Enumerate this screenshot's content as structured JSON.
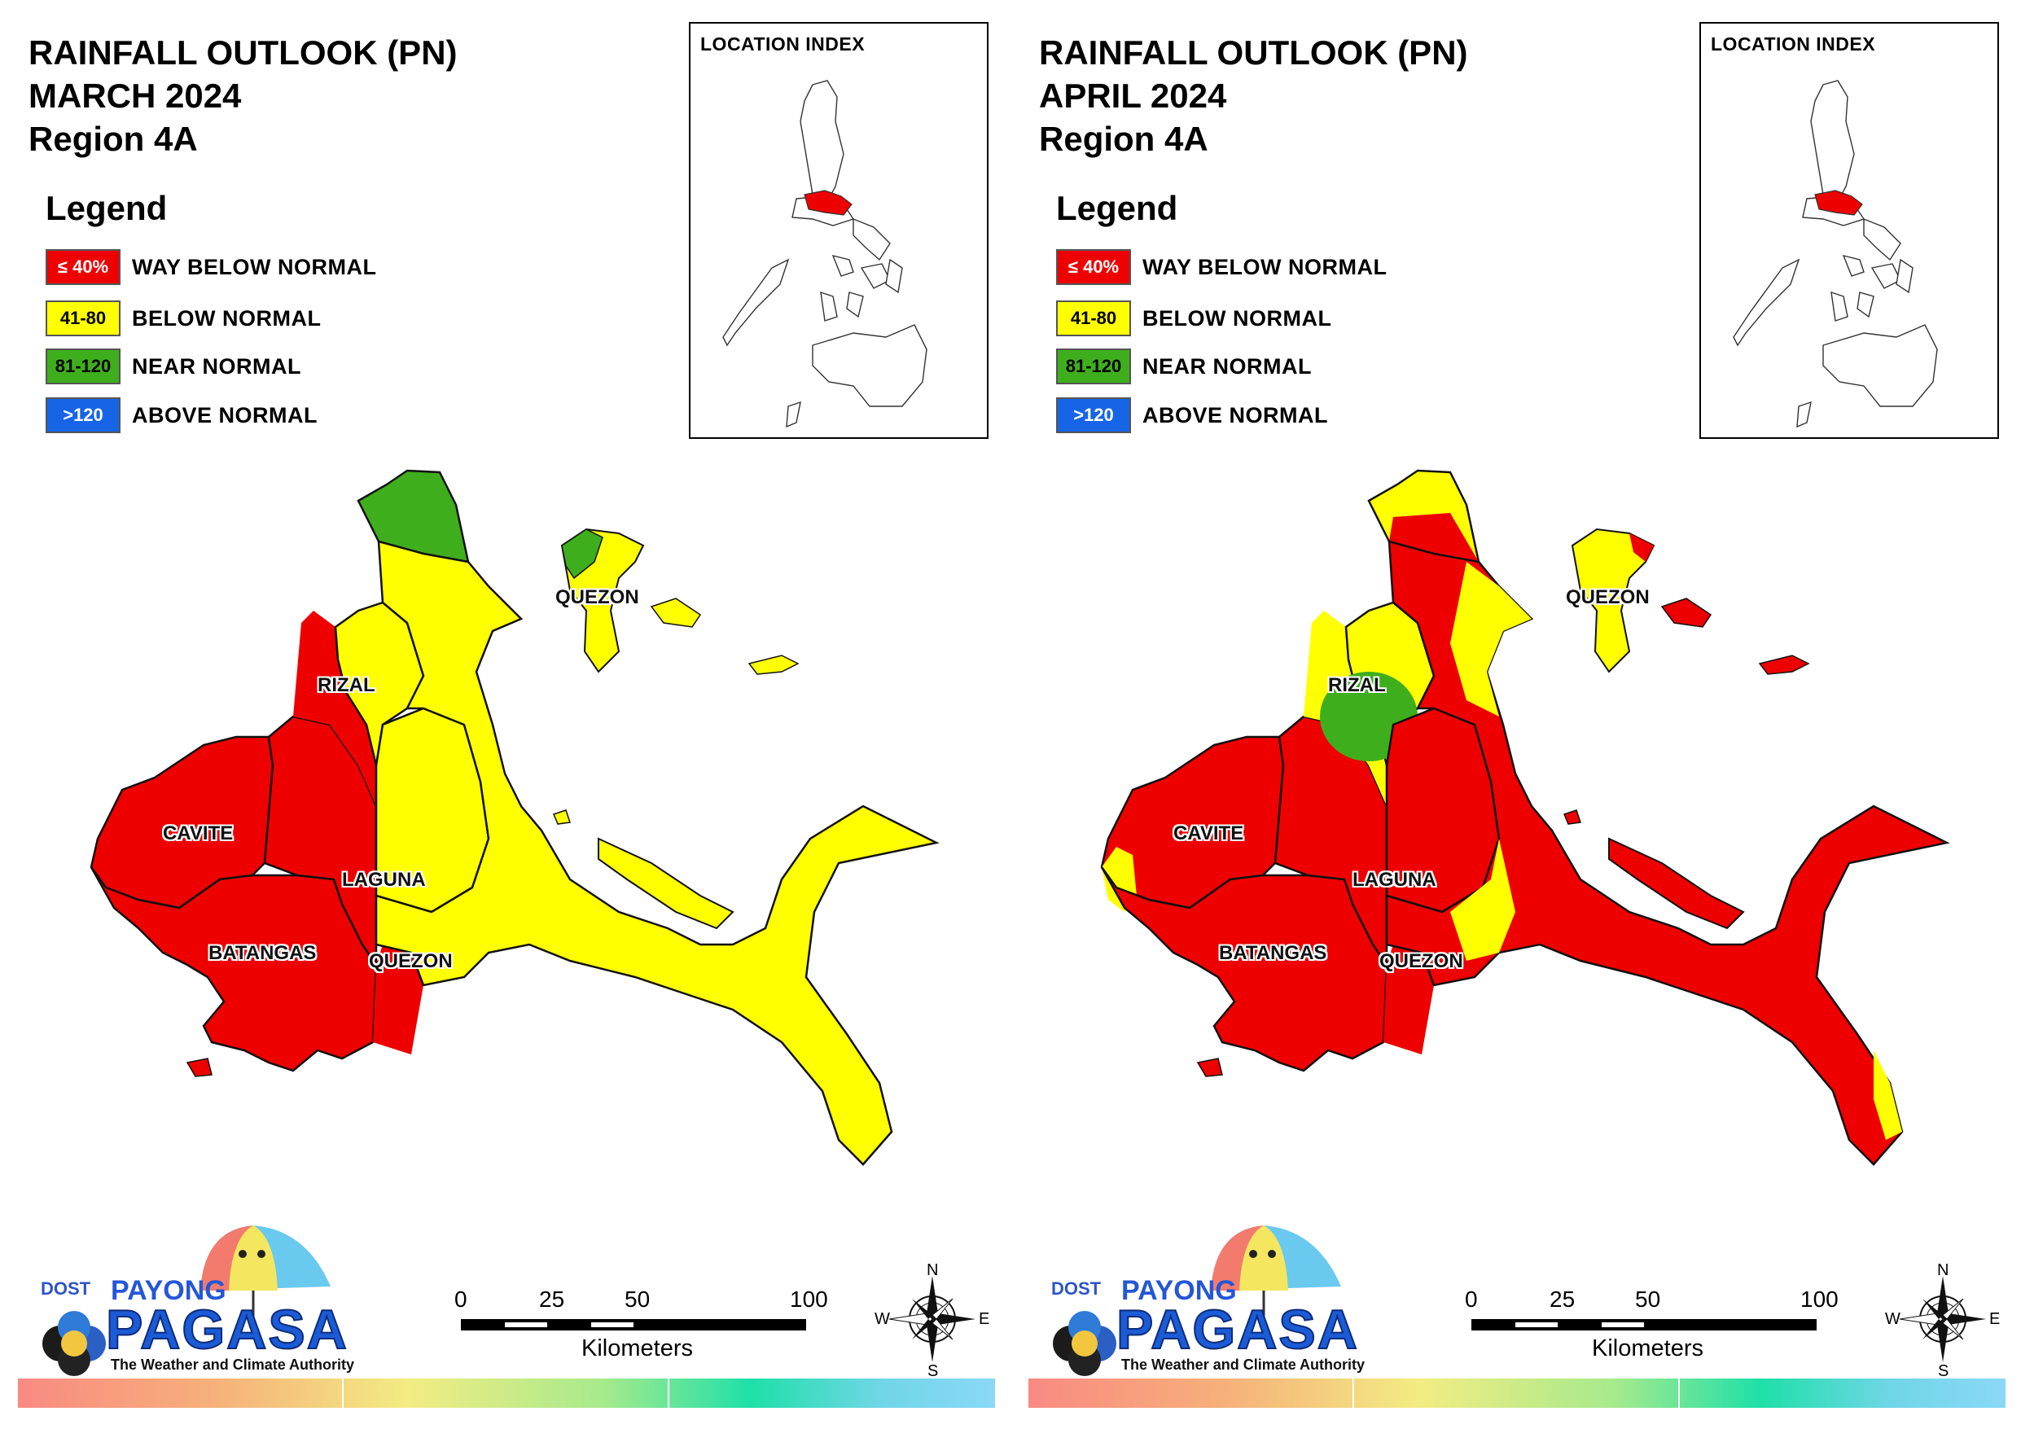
{
  "panels": [
    {
      "title_line1": "RAINFALL OUTLOOK (PN)",
      "title_line2": "MARCH 2024",
      "title_line3": "Region 4A"
    },
    {
      "title_line1": "RAINFALL OUTLOOK (PN)",
      "title_line2": "APRIL 2024",
      "title_line3": "Region 4A"
    }
  ],
  "legend": {
    "heading": "Legend",
    "items": [
      {
        "range": "≤ 40%",
        "label": "WAY BELOW NORMAL",
        "color": "#ee0000",
        "text_color": "#ffffff"
      },
      {
        "range": "41-80",
        "label": "BELOW NORMAL",
        "color": "#ffff00",
        "text_color": "#000000"
      },
      {
        "range": "81-120",
        "label": "NEAR NORMAL",
        "color": "#3fae1c",
        "text_color": "#000000"
      },
      {
        "range": ">120",
        "label": "ABOVE NORMAL",
        "color": "#1565e6",
        "text_color": "#ffffff"
      }
    ]
  },
  "location_index": {
    "title": "LOCATION INDEX",
    "highlight_color": "#ee0000"
  },
  "provinces": {
    "rizal": "RIZAL",
    "cavite": "CAVITE",
    "laguna": "LAGUNA",
    "batangas": "BATANGAS",
    "quezon": "QUEZON"
  },
  "scale_bar": {
    "ticks": [
      "0",
      "25",
      "50",
      "100"
    ],
    "unit": "Kilometers"
  },
  "compass": {
    "n": "N",
    "e": "E",
    "s": "S",
    "w": "W"
  },
  "logo": {
    "dost": "DOST",
    "payong": "PAYONG",
    "pagasa": "PAGASA",
    "tagline": "The Weather and Climate Authority"
  },
  "region_colors": {
    "march": {
      "cavite": "#ee0000",
      "batangas": "#ee0000",
      "laguna_west": "#ee0000",
      "rizal_west": "#ee0000",
      "rizal_east": "#ffff00",
      "laguna_east": "#ffff00",
      "quezon_main": "#ffff00",
      "quezon_north": "#3fae1c",
      "polillo": "#ffff00",
      "bondoc": "#ffff00"
    },
    "april": {
      "cavite": "#ee0000",
      "batangas": "#ee0000",
      "laguna_west": "#ee0000",
      "rizal_west": "#ffff00",
      "rizal_east": "#ffff00",
      "rizal_center": "#3fae1c",
      "laguna_east": "#ee0000",
      "quezon_main": "#ee0000",
      "quezon_north": "#ffff00",
      "polillo": "#ffff00",
      "bondoc": "#ee0000"
    }
  }
}
